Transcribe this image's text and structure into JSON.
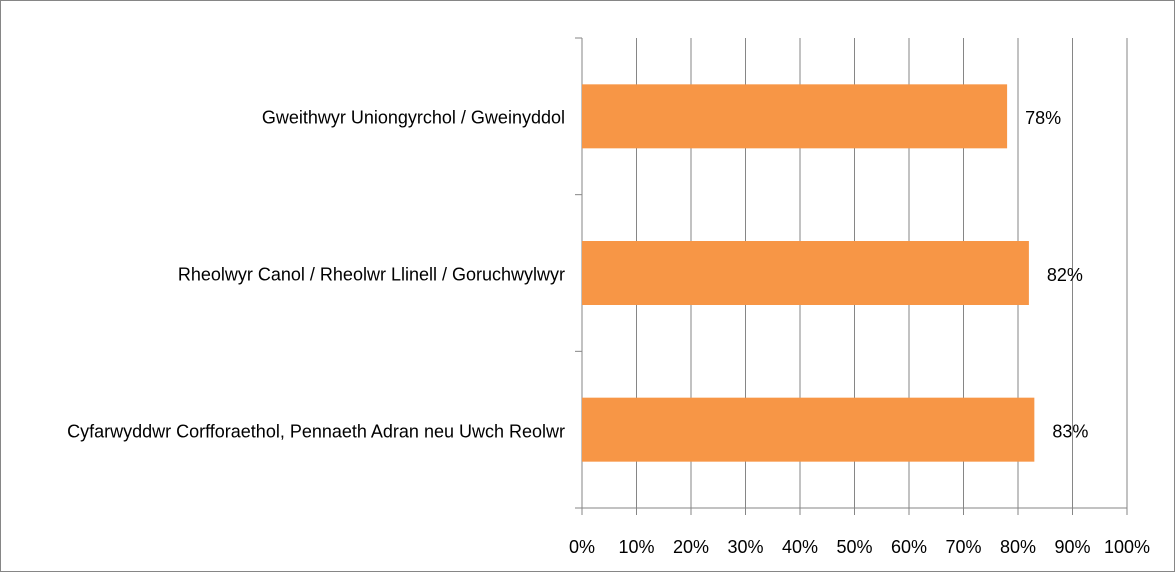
{
  "chart_data": {
    "type": "bar",
    "orientation": "horizontal",
    "categories": [
      "Gweithwyr Uniongyrchol / Gweinyddol",
      "Rheolwyr Canol  / Rheolwr Llinell / Goruchwylwyr",
      "Cyfarwyddwr Corfforaethol, Pennaeth Adran neu Uwch Reolwr"
    ],
    "values": [
      78,
      82,
      83
    ],
    "value_labels": [
      "78%",
      "82%",
      "83%"
    ],
    "color": "#f79646",
    "xlim": [
      0,
      100
    ],
    "xticks": [
      {
        "value": 0,
        "label": "0%"
      },
      {
        "value": 10,
        "label": "10%"
      },
      {
        "value": 20,
        "label": "20%"
      },
      {
        "value": 30,
        "label": "30%"
      },
      {
        "value": 40,
        "label": "40%"
      },
      {
        "value": 50,
        "label": "50%"
      },
      {
        "value": 60,
        "label": "60%"
      },
      {
        "value": 70,
        "label": "70%"
      },
      {
        "value": 80,
        "label": "80%"
      },
      {
        "value": 90,
        "label": "90%"
      },
      {
        "value": 100,
        "label": "100%"
      }
    ],
    "grid": true
  }
}
